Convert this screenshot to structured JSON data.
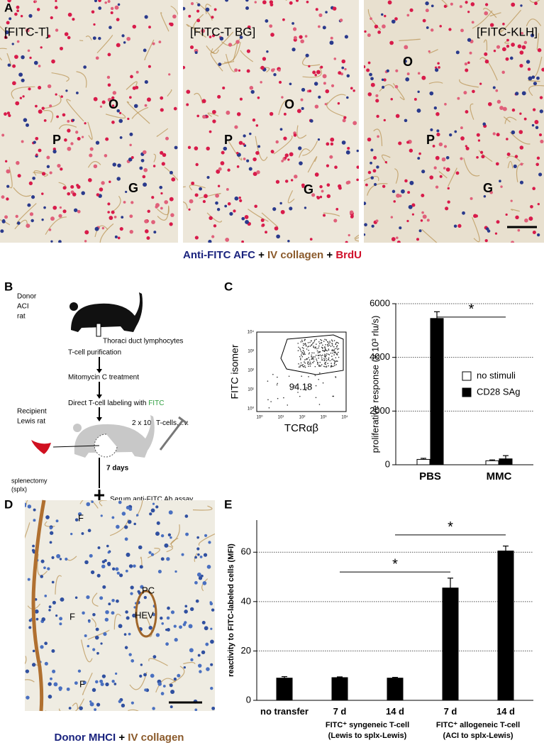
{
  "panel_labels": [
    "A",
    "B",
    "C",
    "D",
    "E"
  ],
  "panel_a": {
    "images": [
      {
        "label": "[FITC-T]",
        "regions": [
          "O",
          "P",
          "G"
        ]
      },
      {
        "label": "[FITC-T BG]",
        "regions": [
          "O",
          "P",
          "G"
        ]
      },
      {
        "label": "[FITC-KLH]",
        "regions": [
          "O",
          "P",
          "G"
        ]
      }
    ],
    "caption": {
      "stain1": "Anti-FITC AFC",
      "sep1": "+",
      "stain2": "IV collagen",
      "sep2": "+",
      "stain3": "BrdU"
    }
  },
  "panel_b": {
    "donor": [
      "Donor",
      "ACI",
      "rat"
    ],
    "collection": "Thoraci duct lymphocytes",
    "steps": [
      "T-cell purification",
      "Mitomycin C treatment"
    ],
    "labeling": {
      "text": "Direct T-cell labeling with",
      "reagent": "FITC"
    },
    "recipient": [
      "Recipient",
      "Lewis rat"
    ],
    "injection": {
      "text": "2 x 10⁸ T-cells,",
      "route": "i.v."
    },
    "interval": "7 days",
    "splenectomy": [
      "splenectomy",
      "(splx)"
    ],
    "assay": "Serum anti-FITC Ab assay"
  },
  "panel_c_flow": {
    "x_label": "TCRαβ",
    "y_label": "FITC isomer",
    "gate_label": "94.18",
    "ticks": [
      "10⁰",
      "10¹",
      "10²",
      "10³",
      "10⁴"
    ]
  },
  "chart_data": [
    {
      "type": "bar",
      "y_label": "proliferative response (x 10³ rlu/s)",
      "categories": [
        "PBS",
        "MMC"
      ],
      "series": [
        {
          "name": "no stimuli",
          "color": "#ffffff",
          "values": [
            200,
            150
          ],
          "errors": [
            40,
            30
          ]
        },
        {
          "name": "CD28 SAg",
          "color": "#000000",
          "values": [
            5450,
            220
          ],
          "errors": [
            250,
            120
          ]
        }
      ],
      "ylim": [
        0,
        6000
      ],
      "yticks": [
        0,
        2000,
        4000,
        6000
      ],
      "grid": true,
      "significance": [
        "*"
      ]
    },
    {
      "type": "bar",
      "y_label": "reactivity to FITC-labeled cells (MFI)",
      "categories": [
        "no transfer",
        "7 d",
        "14 d",
        "7 d",
        "14 d"
      ],
      "groups": [
        {
          "name": "FITC⁺ syngeneic T-cell",
          "note": "(Lewis to splx-Lewis)"
        },
        {
          "name": "FITC⁺ allogeneic T-cell",
          "note": "(ACI to splx-Lewis)"
        }
      ],
      "series": [
        {
          "color": "#000000",
          "values": [
            9,
            9.2,
            9,
            45.5,
            60.5
          ],
          "errors": [
            0.6,
            0.3,
            0.3,
            4,
            2
          ]
        }
      ],
      "ylim": [
        0,
        73
      ],
      "yticks": [
        0,
        20,
        40,
        60
      ],
      "grid": true,
      "significance": [
        "*",
        "*"
      ]
    }
  ],
  "panel_d": {
    "regions": [
      "F",
      "F",
      "F",
      "PC",
      "HEV"
    ],
    "caption": {
      "stain1": "Donor MHCI",
      "sep": "+",
      "stain2": "IV collagen"
    }
  }
}
